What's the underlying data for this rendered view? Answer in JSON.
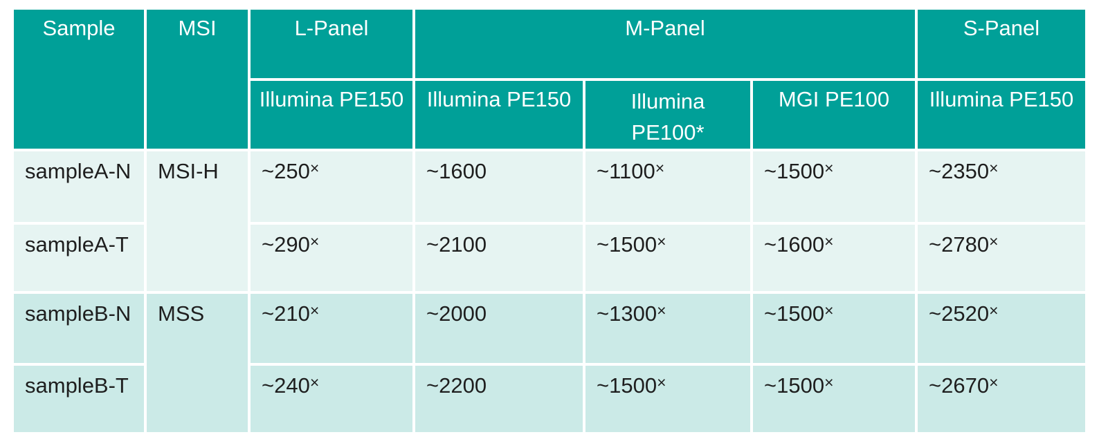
{
  "colors": {
    "header_bg": "#00A098",
    "row_group_a_bg": "#E6F4F2",
    "row_group_b_bg": "#CBEAE7",
    "header_text": "#FFFFFF",
    "body_text": "#1E1E1E",
    "grid_line": "#FFFFFF"
  },
  "table": {
    "header_row1": {
      "sample": "Sample",
      "msi": "MSI",
      "l_panel": "L-Panel",
      "m_panel": "M-Panel",
      "s_panel": "S-Panel"
    },
    "header_row2": {
      "l_panel_platform": "Illumina PE150",
      "m_panel_platform_1": "Illumina PE150",
      "m_panel_platform_2": "Illumina PE100*",
      "m_panel_platform_3": "MGI PE100",
      "s_panel_platform": "Illumina PE150"
    },
    "rows": [
      {
        "sample": "sampleA-N",
        "msi": "MSI-H",
        "l_panel": "~250×",
        "m_panel_illumina_pe150": "~1600",
        "m_panel_illumina_pe100": "~1100×",
        "m_panel_mgi_pe100": "~1500×",
        "s_panel": "~2350×"
      },
      {
        "sample": "sampleA-T",
        "l_panel": "~290×",
        "m_panel_illumina_pe150": "~2100",
        "m_panel_illumina_pe100": "~1500×",
        "m_panel_mgi_pe100": "~1600×",
        "s_panel": "~2780×"
      },
      {
        "sample": "sampleB-N",
        "msi": "MSS",
        "l_panel": "~210×",
        "m_panel_illumina_pe150": "~2000",
        "m_panel_illumina_pe100": "~1300×",
        "m_panel_mgi_pe100": "~1500×",
        "s_panel": "~2520×"
      },
      {
        "sample": "sampleB-T",
        "l_panel": "~240×",
        "m_panel_illumina_pe150": "~2200",
        "m_panel_illumina_pe100": "~1500×",
        "m_panel_mgi_pe100": "~1500×",
        "s_panel": "~2670×"
      }
    ]
  },
  "chart_data": {
    "type": "table",
    "columns": [
      "Sample",
      "MSI",
      "L-Panel / Illumina PE150",
      "M-Panel / Illumina PE150",
      "M-Panel / Illumina PE100*",
      "M-Panel / MGI PE100",
      "S-Panel / Illumina PE150"
    ],
    "rows": [
      [
        "sampleA-N",
        "MSI-H",
        "~250×",
        "~1600",
        "~1100×",
        "~1500×",
        "~2350×"
      ],
      [
        "sampleA-T",
        "MSI-H",
        "~290×",
        "~2100",
        "~1500×",
        "~1600×",
        "~2780×"
      ],
      [
        "sampleB-N",
        "MSS",
        "~210×",
        "~2000",
        "~1300×",
        "~1500×",
        "~2520×"
      ],
      [
        "sampleB-T",
        "MSS",
        "~240×",
        "~2200",
        "~1500×",
        "~1500×",
        "~2670×"
      ]
    ]
  }
}
